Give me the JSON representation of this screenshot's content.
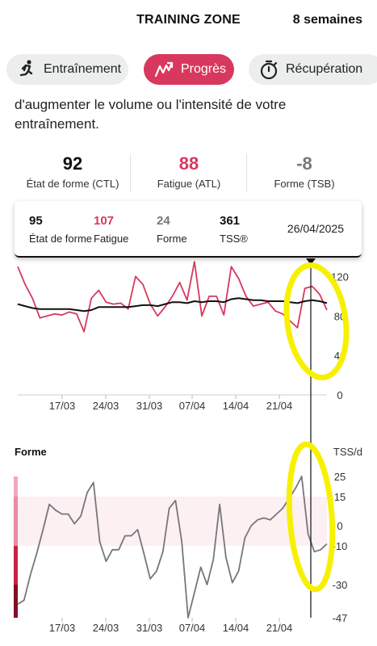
{
  "header": {
    "title": "TRAINING ZONE",
    "period": "8 semaines"
  },
  "tabs": [
    {
      "label": "Entraînement",
      "icon": "runner-icon"
    },
    {
      "label": "Progrès",
      "icon": "trend-icon",
      "active": true
    },
    {
      "label": "Récupération",
      "icon": "stopwatch-icon"
    }
  ],
  "description": "d'augmenter le volume ou l'intensité de votre entraînement.",
  "stats": [
    {
      "value": "92",
      "label": "État de forme (CTL)",
      "color": "#111111"
    },
    {
      "value": "88",
      "label": "Fatigue (ATL)",
      "color": "#d8385d"
    },
    {
      "value": "-8",
      "label": "Forme (TSB)",
      "color": "#777777"
    }
  ],
  "tooltip": {
    "items": [
      {
        "value": "95",
        "label": "État de forme",
        "color": "#111111"
      },
      {
        "value": "107",
        "label": "Fatigue",
        "color": "#d8385d"
      },
      {
        "value": "24",
        "label": "Forme",
        "color": "#777777"
      },
      {
        "value": "361",
        "label": "TSS®",
        "color": "#111111"
      }
    ],
    "date": "26/04/2025"
  },
  "colors": {
    "accent": "#d8385d",
    "fitness": "#111111",
    "form": "#777777",
    "highlight": "#f7f000"
  },
  "chart_data": [
    {
      "type": "line",
      "title": "",
      "xlabel": "",
      "ylabel": "",
      "ylim": [
        0,
        140
      ],
      "yticks": [
        "120",
        "80",
        "40",
        "0"
      ],
      "xticks": [
        "17/03",
        "24/03",
        "31/03",
        "07/04",
        "14/04",
        "21/04"
      ],
      "series": [
        {
          "name": "Fatigue",
          "values": [
            130,
            112,
            98,
            78,
            80,
            82,
            81,
            84,
            82,
            64,
            98,
            106,
            94,
            92,
            93,
            87,
            120,
            112,
            92,
            80,
            89,
            100,
            114,
            96,
            135,
            80,
            100,
            100,
            81,
            130,
            118,
            100,
            90,
            92,
            94,
            85,
            82,
            75,
            68,
            108,
            110,
            102,
            86
          ]
        },
        {
          "name": "État de forme",
          "values": [
            92,
            90,
            88,
            87,
            87,
            87,
            87,
            87,
            86,
            85,
            86,
            89,
            89,
            89,
            89,
            89,
            90,
            91,
            91,
            90,
            92,
            94,
            94,
            93,
            95,
            94,
            95,
            95,
            94,
            97,
            98,
            97,
            96,
            96,
            95,
            95,
            95,
            94,
            93,
            95,
            96,
            95,
            93
          ]
        }
      ]
    },
    {
      "type": "line",
      "title": "Forme",
      "ylabel": "TSS/d",
      "ylim": [
        -47,
        25
      ],
      "yticks": [
        "25",
        "15",
        "0",
        "-10",
        "-30",
        "-47"
      ],
      "xticks": [
        "17/03",
        "24/03",
        "31/03",
        "07/04",
        "14/04",
        "21/04"
      ],
      "series": [
        {
          "name": "Forme",
          "values": [
            -40,
            -38,
            -25,
            -14,
            -2,
            11,
            8,
            6,
            6,
            1,
            5,
            17,
            22,
            -8,
            -18,
            -12,
            -12,
            -5,
            -5,
            -2,
            -14,
            -27,
            -23,
            -13,
            9,
            13,
            -8,
            -47,
            -34,
            -21,
            -30,
            -17,
            11,
            -16,
            -29,
            -23,
            -6,
            0,
            3,
            4,
            3,
            6,
            9,
            14,
            19,
            25,
            -4,
            -13,
            -12,
            -9
          ]
        }
      ]
    }
  ]
}
